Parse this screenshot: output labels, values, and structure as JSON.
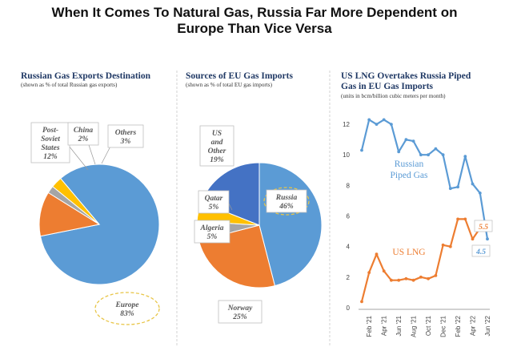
{
  "title_lines": [
    "When It Comes To Natural Gas, Russia Far More Dependent on",
    "Europe Than Vice Versa"
  ],
  "colors": {
    "blue": "#5b9bd5",
    "orange": "#ed7d31",
    "gray": "#a5a5a5",
    "yellow": "#ffc000",
    "dark_blue": "#4472c4",
    "title_navy": "#1f3864",
    "callout_ring": "#e8c547"
  },
  "chart_data": [
    {
      "type": "pie",
      "title": "Russian Gas Exports Destination",
      "subtitle": "(shown as % of total Russian gas exports)",
      "slices": [
        {
          "label": "Europe",
          "value": 83,
          "display": "83%",
          "color": "#5b9bd5"
        },
        {
          "label": "Post-Soviet States",
          "label_lines": [
            "Post-",
            "Soviet",
            "States"
          ],
          "value": 12,
          "display": "12%",
          "color": "#ed7d31"
        },
        {
          "label": "China",
          "value": 2,
          "display": "2%",
          "color": "#a5a5a5"
        },
        {
          "label": "Others",
          "value": 3,
          "display": "3%",
          "color": "#ffc000"
        }
      ]
    },
    {
      "type": "pie",
      "title": "Sources of EU Gas Imports",
      "subtitle": "(shown as % of total EU gas imports)",
      "slices": [
        {
          "label": "Russia",
          "value": 46,
          "display": "46%",
          "color": "#5b9bd5"
        },
        {
          "label": "Norway",
          "value": 25,
          "display": "25%",
          "color": "#ed7d31"
        },
        {
          "label": "Algeria",
          "value": 5,
          "display": "5%",
          "color": "#a5a5a5"
        },
        {
          "label": "Qatar",
          "value": 5,
          "display": "5%",
          "color": "#ffc000"
        },
        {
          "label": "US and Other",
          "label_lines": [
            "US",
            "and",
            "Other"
          ],
          "value": 19,
          "display": "19%",
          "color": "#4472c4"
        }
      ]
    },
    {
      "type": "line",
      "title_lines": [
        "US LNG Overtakes Russia Piped",
        "Gas in EU Gas Imports"
      ],
      "subtitle": "(units in bcm/billion cubic meters per month)",
      "ylim": [
        0,
        13
      ],
      "yticks": [
        0,
        2,
        4,
        6,
        8,
        10,
        12
      ],
      "x": [
        "Jan '21",
        "Feb '21",
        "Mar '21",
        "Apr '21",
        "May '21",
        "Jun '21",
        "Jul '21",
        "Aug '21",
        "Sep '21",
        "Oct '21",
        "Nov '21",
        "Dec '21",
        "Jan '22",
        "Feb '22",
        "Mar '22",
        "Apr '22",
        "May '22",
        "Jun '22"
      ],
      "xtick_labels": [
        "Feb '21",
        "Apr '21",
        "Jun '21",
        "Aug '21",
        "Oct '21",
        "Dec '21",
        "Feb '22",
        "Apr '22",
        "Jun '22"
      ],
      "series": [
        {
          "name": "Russian Piped Gas",
          "label_lines": [
            "Russian",
            "Piped Gas"
          ],
          "color": "#5b9bd5",
          "end_label": "4.5",
          "values": [
            10.3,
            12.3,
            12.0,
            12.3,
            12.0,
            10.2,
            11.0,
            10.9,
            10.0,
            10.0,
            10.4,
            10.0,
            7.8,
            7.9,
            9.9,
            8.1,
            7.5,
            4.5
          ]
        },
        {
          "name": "US LNG",
          "color": "#ed7d31",
          "end_label": "5.5",
          "values": [
            0.4,
            2.3,
            3.5,
            2.4,
            1.8,
            1.8,
            1.9,
            1.8,
            2.0,
            1.9,
            2.1,
            4.1,
            4.0,
            5.8,
            5.8,
            4.5,
            5.2,
            5.5
          ]
        }
      ]
    }
  ]
}
